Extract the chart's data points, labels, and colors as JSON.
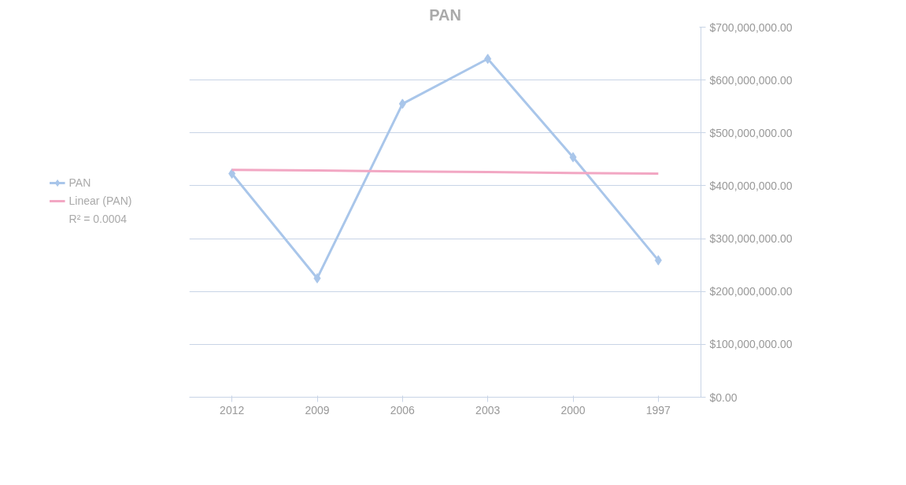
{
  "chart_data": {
    "type": "line",
    "title": "PAN",
    "categories": [
      "2012",
      "2009",
      "2006",
      "2003",
      "2000",
      "1997"
    ],
    "series": [
      {
        "name": "PAN",
        "color": "#a9c6ea",
        "values": [
          423000000,
          225000000,
          555000000,
          640000000,
          454000000,
          259000000
        ],
        "marker": "diamond"
      },
      {
        "name": "Linear (PAN)",
        "type": "line",
        "color": "#f2a7c3",
        "values": [
          430000000,
          429000000,
          427000000,
          426000000,
          424000000,
          423000000
        ],
        "marker": "none"
      }
    ],
    "ylim": [
      0,
      700000000
    ],
    "yticks": [
      {
        "value": 0,
        "label": "$0.00"
      },
      {
        "value": 100000000,
        "label": "$100,000,000.00"
      },
      {
        "value": 200000000,
        "label": "$200,000,000.00"
      },
      {
        "value": 300000000,
        "label": "$300,000,000.00"
      },
      {
        "value": 400000000,
        "label": "$400,000,000.00"
      },
      {
        "value": 500000000,
        "label": "$500,000,000.00"
      },
      {
        "value": 600000000,
        "label": "$600,000,000.00"
      },
      {
        "value": 700000000,
        "label": "$700,000,000.00"
      }
    ],
    "grid": "y",
    "legend": "left",
    "annotations": [
      "R² = 0.0004"
    ]
  }
}
